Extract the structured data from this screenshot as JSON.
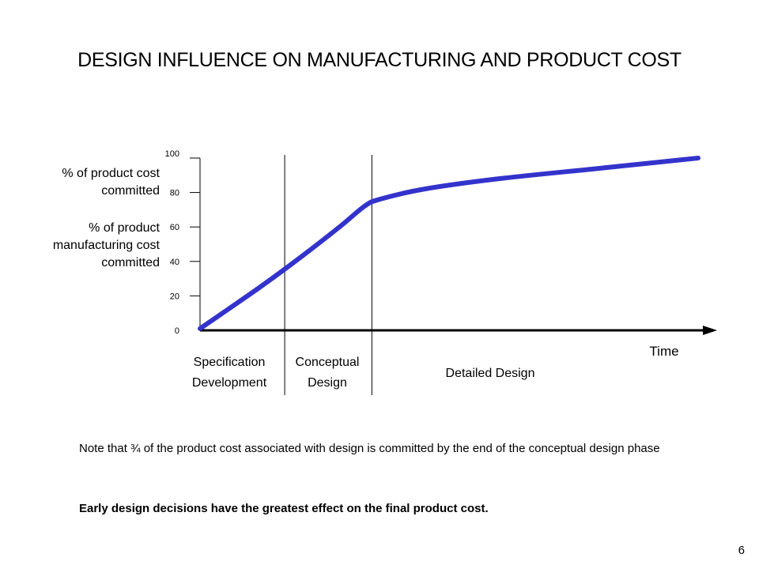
{
  "title": "DESIGN INFLUENCE ON MANUFACTURING AND PRODUCT COST",
  "y_labels": {
    "line1": [
      "% of product cost",
      "committed"
    ],
    "line2": [
      "% of product",
      "manufacturing cost",
      "committed"
    ]
  },
  "x_axis_label": "Time",
  "phases": [
    {
      "line1": "Specification",
      "line2": "Development"
    },
    {
      "line1": "Conceptual",
      "line2": "Design"
    },
    {
      "line1": "Detailed Design",
      "line2": ""
    }
  ],
  "notes": {
    "note": "Note that ¾ of the product cost associated with design is committed by the end of the conceptual design phase",
    "emphasis": "Early design decisions have the greatest effect on the final product cost."
  },
  "page_number": "6",
  "colors": {
    "curve": "#3333cc",
    "axis": "#000000"
  },
  "chart_data": {
    "type": "line",
    "ylim": [
      0,
      100
    ],
    "yticks": [
      0,
      20,
      40,
      60,
      80,
      100
    ],
    "xlabel": "Time",
    "series": [
      {
        "values": [
          {
            "x": 0.0,
            "y": 1
          },
          {
            "x": 0.12,
            "y": 25
          },
          {
            "x": 0.2,
            "y": 42
          },
          {
            "x": 0.28,
            "y": 60
          },
          {
            "x": 0.33,
            "y": 72
          },
          {
            "x": 0.36,
            "y": 76
          },
          {
            "x": 0.45,
            "y": 82
          },
          {
            "x": 0.6,
            "y": 88
          },
          {
            "x": 0.8,
            "y": 94
          },
          {
            "x": 1.0,
            "y": 100
          }
        ]
      }
    ],
    "phase_boundaries": [
      0.17,
      0.345
    ]
  }
}
